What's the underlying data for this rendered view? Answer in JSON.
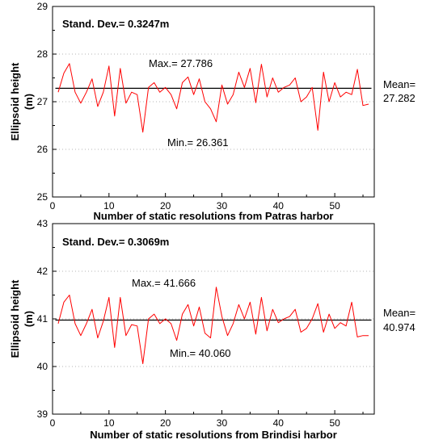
{
  "chart_data": [
    {
      "type": "line",
      "title": "",
      "xlabel": "Number of static resolutions from Patras harbor",
      "ylabel": "Ellipsoid height",
      "ylabel_unit": "(m)",
      "xlim": [
        0,
        57
      ],
      "ylim": [
        25,
        29
      ],
      "xticks": [
        0,
        10,
        20,
        30,
        40,
        50
      ],
      "xtick_labels": [
        "0",
        "10",
        "20",
        "30",
        "40",
        "50"
      ],
      "yticks": [
        25,
        26,
        27,
        28,
        29
      ],
      "ytick_labels": [
        "25",
        "26",
        "27",
        "28",
        "29"
      ],
      "grid": "horizontal-dotted",
      "stdev_label": "Stand. Dev.= 0.3247m",
      "max_label": "Max.= 27.786",
      "min_label": "Min.= 26.361",
      "mean_label_line1": "Mean=",
      "mean_label_line2": "27.282",
      "mean": 27.282,
      "line_color": "#ff0000",
      "mean_line_color": "#000000",
      "x": [
        1,
        2,
        3,
        4,
        5,
        6,
        7,
        8,
        9,
        10,
        11,
        12,
        13,
        14,
        15,
        16,
        17,
        18,
        19,
        20,
        21,
        22,
        23,
        24,
        25,
        26,
        27,
        28,
        29,
        30,
        31,
        32,
        33,
        34,
        35,
        36,
        37,
        38,
        39,
        40,
        41,
        42,
        43,
        44,
        45,
        46,
        47,
        48,
        49,
        50,
        51,
        52,
        53,
        54,
        55,
        56
      ],
      "y": [
        27.2,
        27.6,
        27.8,
        27.2,
        26.97,
        27.2,
        27.48,
        26.9,
        27.2,
        27.75,
        26.7,
        27.7,
        26.97,
        27.2,
        27.15,
        26.361,
        27.3,
        27.4,
        27.2,
        27.3,
        27.15,
        26.85,
        27.4,
        27.52,
        27.15,
        27.48,
        27.0,
        26.85,
        26.58,
        27.35,
        26.95,
        27.15,
        27.62,
        27.3,
        27.7,
        26.98,
        27.786,
        27.1,
        27.5,
        27.2,
        27.3,
        27.35,
        27.5,
        27.0,
        27.1,
        27.3,
        26.4,
        27.62,
        27.0,
        27.4,
        27.1,
        27.2,
        27.15,
        27.68,
        26.92,
        26.95
      ]
    },
    {
      "type": "line",
      "title": "",
      "xlabel": "Number of static resolutions from Brindisi harbor",
      "ylabel": "Ellipsoid height",
      "ylabel_unit": "(m)",
      "xlim": [
        0,
        57
      ],
      "ylim": [
        39,
        43
      ],
      "xticks": [
        0,
        10,
        20,
        30,
        40,
        50
      ],
      "xtick_labels": [
        "0",
        "10",
        "20",
        "30",
        "40",
        "50"
      ],
      "yticks": [
        39,
        40,
        41,
        42,
        43
      ],
      "ytick_labels": [
        "39",
        "40",
        "41",
        "42",
        "43"
      ],
      "grid": "horizontal-dotted",
      "stdev_label": "Stand. Dev.= 0.3069m",
      "max_label": "Max.= 41.666",
      "min_label": "Min.= 40.060",
      "mean_label_line1": "Mean=",
      "mean_label_line2": "40.974",
      "mean": 40.974,
      "line_color": "#ff0000",
      "mean_line_color": "#000000",
      "x": [
        1,
        2,
        3,
        4,
        5,
        6,
        7,
        8,
        9,
        10,
        11,
        12,
        13,
        14,
        15,
        16,
        17,
        18,
        19,
        20,
        21,
        22,
        23,
        24,
        25,
        26,
        27,
        28,
        29,
        30,
        31,
        32,
        33,
        34,
        35,
        36,
        37,
        38,
        39,
        40,
        41,
        42,
        43,
        44,
        45,
        46,
        47,
        48,
        49,
        50,
        51,
        52,
        53,
        54,
        55,
        56
      ],
      "y": [
        40.9,
        41.35,
        41.5,
        40.9,
        40.65,
        40.9,
        41.2,
        40.6,
        40.95,
        41.45,
        40.4,
        41.45,
        40.65,
        40.88,
        40.85,
        40.06,
        41.0,
        41.1,
        40.9,
        41.0,
        40.9,
        40.55,
        41.1,
        41.3,
        40.85,
        41.25,
        40.7,
        40.6,
        41.666,
        41.05,
        40.65,
        40.9,
        41.3,
        41.0,
        41.35,
        40.68,
        41.45,
        40.75,
        41.2,
        40.92,
        41.0,
        41.05,
        41.2,
        40.72,
        40.8,
        41.0,
        41.32,
        40.72,
        41.1,
        40.8,
        40.92,
        40.85,
        41.35,
        40.62,
        40.65,
        40.65
      ]
    }
  ]
}
